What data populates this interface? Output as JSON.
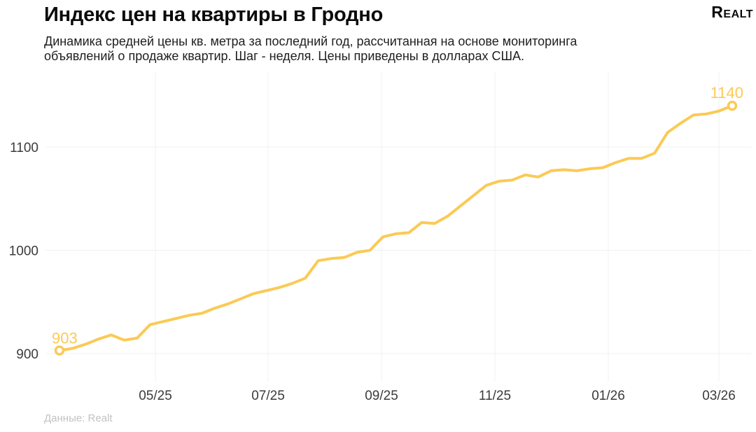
{
  "header": {
    "title": "Индекс цен на квартиры в Гродно",
    "subtitle_line1": "Динамика средней цены кв. метра за последний год, рассчитанная на основе мониторинга",
    "subtitle_line2": "объявлений о продаже квартир. Шаг - неделя. Цены приведены в долларах США.",
    "logo": "Realt"
  },
  "footer": {
    "source": "Данные: Realt"
  },
  "colors": {
    "accent": "#FBCA55",
    "grid": "#F1F1F1",
    "axis_text": "#3B3B3B",
    "marker_fill": "#FFFFFF",
    "background": "#FFFFFF"
  },
  "chart_data": {
    "type": "line",
    "title": "Индекс цен на квартиры в Гродно",
    "x_step": "неделя",
    "x_tick_labels": [
      "05/25",
      "07/25",
      "09/25",
      "11/25",
      "01/26",
      "03/26"
    ],
    "y_tick_labels": [
      "900",
      "1000",
      "1100"
    ],
    "y_tick_values": [
      900,
      1000,
      1100
    ],
    "values": [
      903,
      905,
      909,
      914,
      918,
      913,
      915,
      928,
      931,
      934,
      937,
      939,
      944,
      948,
      953,
      958,
      961,
      964,
      968,
      973,
      990,
      992,
      993,
      998,
      1000,
      1013,
      1016,
      1017,
      1027,
      1026,
      1033,
      1043,
      1053,
      1063,
      1067,
      1068,
      1073,
      1071,
      1077,
      1078,
      1077,
      1079,
      1080,
      1085,
      1089,
      1089,
      1094,
      1114,
      1123,
      1131,
      1132,
      1135,
      1140
    ],
    "first_point_label": "903",
    "last_point_label": "1140",
    "ylim": [
      870,
      1165
    ],
    "grid": true,
    "legend": "none"
  }
}
